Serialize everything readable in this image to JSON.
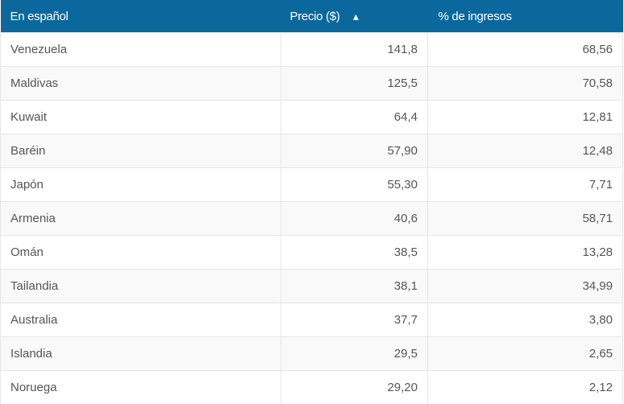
{
  "colors": {
    "header_bg": "#0b689c",
    "header_text": "#ffffff",
    "row_alt": "#f9f9f9"
  },
  "table": {
    "headers": [
      {
        "label": "En español"
      },
      {
        "label": "Precio ($)",
        "sort_icon": "sort-ascending-icon",
        "sort_glyph": "▲"
      },
      {
        "label": "% de ingresos"
      }
    ],
    "rows": [
      [
        "Venezuela",
        "141,8",
        "68,56"
      ],
      [
        "Maldivas",
        "125,5",
        "70,58"
      ],
      [
        "Kuwait",
        "64,4",
        "12,81"
      ],
      [
        "Baréin",
        "57,90",
        "12,48"
      ],
      [
        "Japón",
        "55,30",
        "7,71"
      ],
      [
        "Armenia",
        "40,6",
        "58,71"
      ],
      [
        "Omán",
        "38,5",
        "13,28"
      ],
      [
        "Tailandia",
        "38,1",
        "34,99"
      ],
      [
        "Australia",
        "37,7",
        "3,80"
      ],
      [
        "Islandia",
        "29,5",
        "2,65"
      ],
      [
        "Noruega",
        "29,20",
        "2,12"
      ]
    ]
  }
}
